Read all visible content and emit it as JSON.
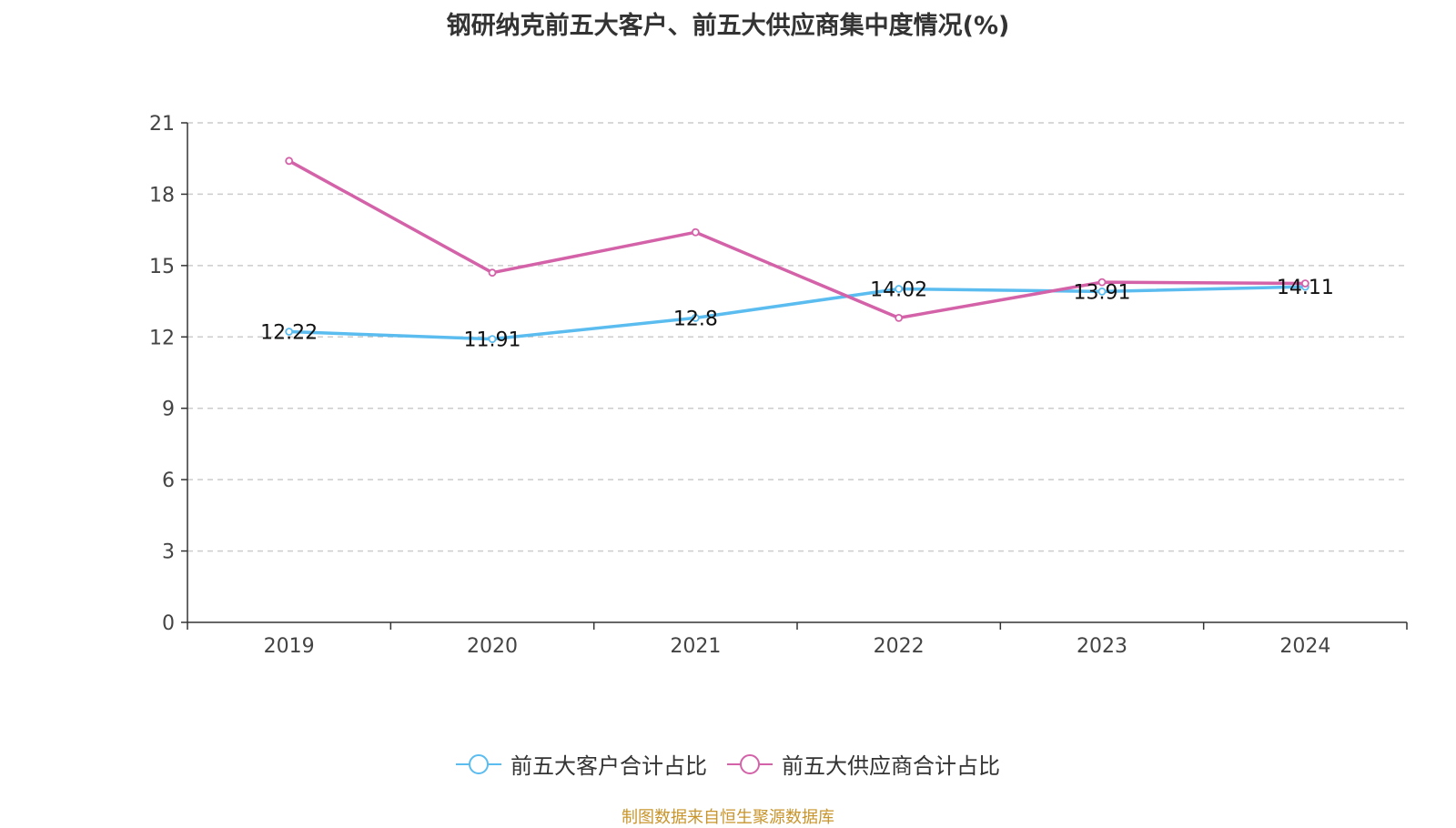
{
  "chart_data": {
    "type": "line",
    "title": "钢研纳克前五大客户、前五大供应商集中度情况(%)",
    "xlabel": "",
    "ylabel": "",
    "categories": [
      "2019",
      "2020",
      "2021",
      "2022",
      "2023",
      "2024"
    ],
    "ylim": [
      0,
      21
    ],
    "yticks": [
      0,
      3,
      6,
      9,
      12,
      15,
      18,
      21
    ],
    "grid": true,
    "legend_position": "bottom-center",
    "series": [
      {
        "name": "前五大客户合计占比",
        "color": "#5bbcf0",
        "values": [
          12.22,
          11.91,
          12.8,
          14.02,
          13.91,
          14.11
        ],
        "data_labels": [
          "12.22",
          "11.91",
          "12.8",
          "14.02",
          "13.91",
          "14.11"
        ]
      },
      {
        "name": "前五大供应商合计占比",
        "color": "#d462a8",
        "values": [
          19.4,
          14.7,
          16.4,
          12.8,
          14.3,
          14.25
        ]
      }
    ]
  },
  "source_note": "制图数据来自恒生聚源数据库"
}
